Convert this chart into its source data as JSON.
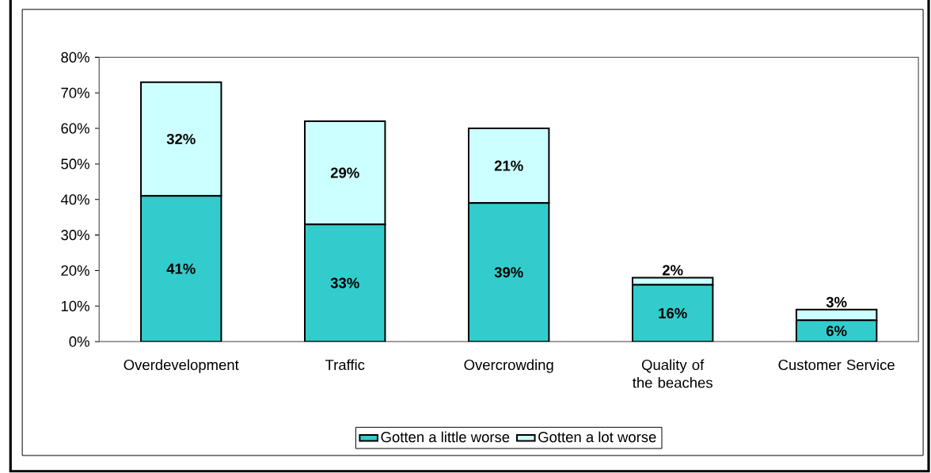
{
  "chart_data": {
    "type": "bar",
    "stacked": true,
    "categories": [
      "Overdevelopment",
      "Traffic",
      "Overcrowding",
      "Quality of the beaches",
      "Customer Service"
    ],
    "series": [
      {
        "name": "Gotten a little worse",
        "color": "#33cccc",
        "values": [
          41,
          33,
          39,
          16,
          6
        ],
        "value_labels": [
          "41%",
          "33%",
          "39%",
          "16%",
          "6%"
        ]
      },
      {
        "name": "Gotten a lot worse",
        "color": "#ccffff",
        "values": [
          32,
          29,
          21,
          2,
          3
        ],
        "value_labels": [
          "32%",
          "29%",
          "21%",
          "2%",
          "3%"
        ]
      }
    ],
    "ylim": [
      0,
      80
    ],
    "yticks": [
      {
        "value": 0,
        "label": "0%"
      },
      {
        "value": 10,
        "label": "10%"
      },
      {
        "value": 20,
        "label": "20%"
      },
      {
        "value": 30,
        "label": "30%"
      },
      {
        "value": 40,
        "label": "40%"
      },
      {
        "value": 50,
        "label": "50%"
      },
      {
        "value": 60,
        "label": "60%"
      },
      {
        "value": 70,
        "label": "70%"
      },
      {
        "value": 80,
        "label": "80%"
      }
    ],
    "grid": false,
    "legend": "bottom"
  }
}
